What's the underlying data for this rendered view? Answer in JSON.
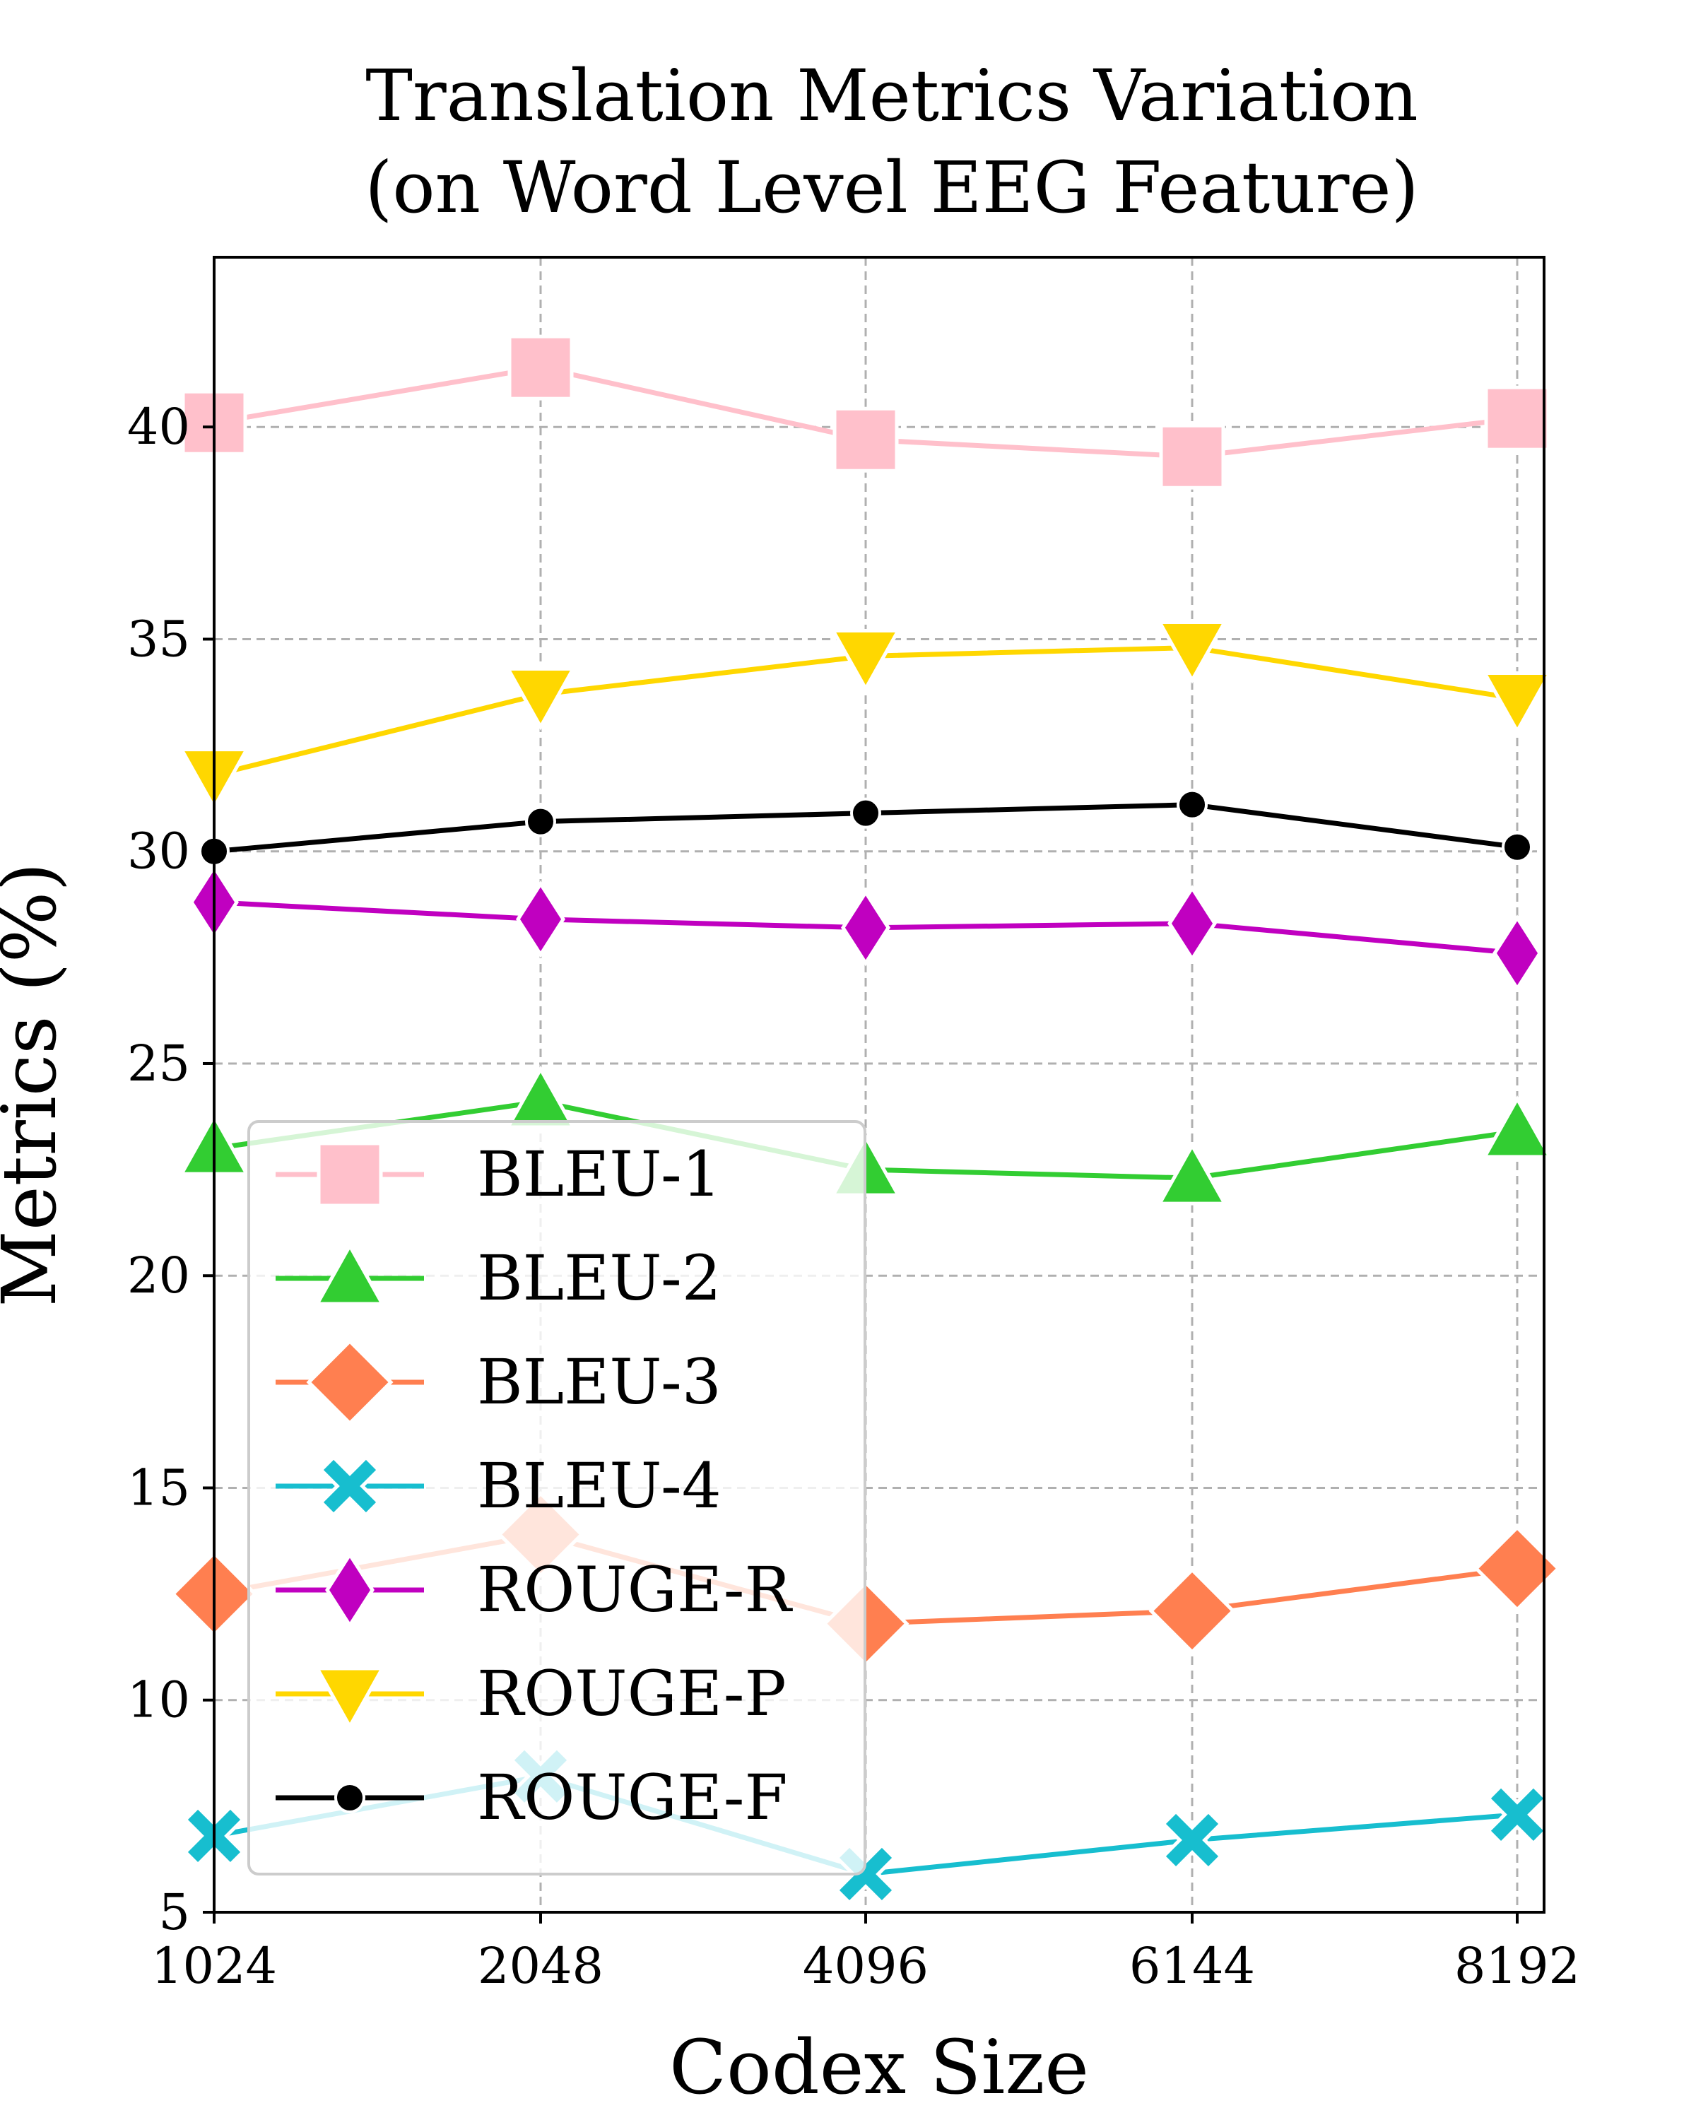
{
  "chart_data": {
    "type": "line",
    "title": [
      "Translation Metrics Variation",
      "(on Word Level EEG Feature)"
    ],
    "xlabel": "Codex Size",
    "ylabel": "Metrics (%)",
    "x": [
      1024,
      2048,
      4096,
      6144,
      8192
    ],
    "x_tick_labels": [
      "1024",
      "2048",
      "4096",
      "6144",
      "8192"
    ],
    "y_ticks": [
      5,
      10,
      15,
      20,
      25,
      30,
      35,
      40
    ],
    "ylim": [
      5,
      44
    ],
    "grid": true,
    "legend_position": "lower-left",
    "series": [
      {
        "name": "BLEU-1",
        "values": [
          40.1,
          41.4,
          39.7,
          39.3,
          40.2
        ],
        "color": "#ffc0cb",
        "marker": "square"
      },
      {
        "name": "BLEU-2",
        "values": [
          23.0,
          24.1,
          22.5,
          22.3,
          23.4
        ],
        "color": "#32cd32",
        "marker": "triangle-up"
      },
      {
        "name": "BLEU-3",
        "values": [
          12.5,
          13.9,
          11.8,
          12.1,
          13.1
        ],
        "color": "#ff7f50",
        "marker": "diamond"
      },
      {
        "name": "BLEU-4",
        "values": [
          6.8,
          8.2,
          5.9,
          6.7,
          7.3
        ],
        "color": "#17becf",
        "marker": "x"
      },
      {
        "name": "ROUGE-R",
        "values": [
          28.8,
          28.4,
          28.2,
          28.3,
          27.6
        ],
        "color": "#c000c0",
        "marker": "thin-diamond"
      },
      {
        "name": "ROUGE-P",
        "values": [
          31.8,
          33.7,
          34.6,
          34.8,
          33.6
        ],
        "color": "#ffd700",
        "marker": "triangle-down"
      },
      {
        "name": "ROUGE-F",
        "values": [
          30.0,
          30.7,
          30.9,
          31.1,
          30.1
        ],
        "color": "#000000",
        "marker": "dot"
      }
    ]
  }
}
